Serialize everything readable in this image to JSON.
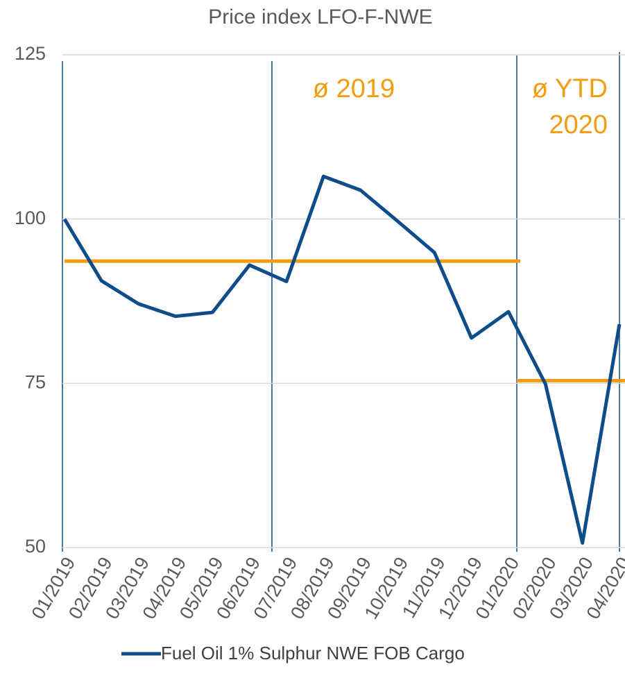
{
  "chart_data": {
    "type": "line",
    "title": "Price index LFO-F-NWE",
    "categories": [
      "01/2019",
      "02/2019",
      "03/2019",
      "04/2019",
      "05/2019",
      "06/2019",
      "07/2019",
      "08/2019",
      "09/2019",
      "10/2019",
      "11/2019",
      "12/2019",
      "01/2020",
      "02/2020",
      "03/2020",
      "04/2020"
    ],
    "series": [
      {
        "name": "Fuel Oil 1% Sulphur NWE FOB Cargo",
        "color": "#0f4c8a",
        "values": [
          100,
          90.6,
          87.1,
          85.2,
          85.8,
          93.0,
          90.5,
          106.5,
          104.4,
          99.7,
          94.9,
          81.9,
          85.9,
          74.9,
          50.7,
          84.0
        ]
      }
    ],
    "averages": [
      {
        "label": [
          "ø 2019"
        ],
        "value": 93.6,
        "color": "#f39c12"
      },
      {
        "label": [
          "ø YTD",
          "2020"
        ],
        "value": 75.4,
        "color": "#f39c12"
      }
    ],
    "ylim": [
      50,
      125
    ],
    "yticks": [
      50,
      75,
      100,
      125
    ],
    "grid": true
  }
}
